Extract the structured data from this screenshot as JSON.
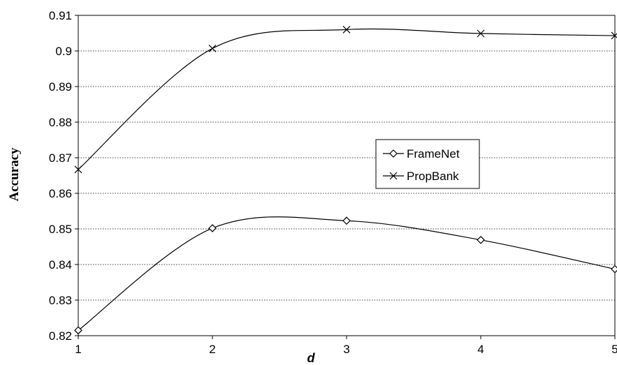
{
  "chart_data": {
    "type": "line",
    "title": "",
    "xlabel": "d",
    "ylabel": "Accuracy",
    "x": [
      1,
      2,
      3,
      4,
      5
    ],
    "x_ticks": [
      "1",
      "2",
      "3",
      "4",
      "5"
    ],
    "ylim": [
      0.82,
      0.91
    ],
    "y_ticks": [
      "0.82",
      "0.83",
      "0.84",
      "0.85",
      "0.86",
      "0.87",
      "0.88",
      "0.89",
      "0.9",
      "0.91"
    ],
    "grid": "horizontal dotted",
    "legend_position": "center-right",
    "series": [
      {
        "name": "FrameNet",
        "marker": "diamond",
        "values": [
          0.8215,
          0.8502,
          0.8523,
          0.8469,
          0.8387
        ]
      },
      {
        "name": "PropBank",
        "marker": "x",
        "values": [
          0.8667,
          0.9007,
          0.906,
          0.9049,
          0.9043
        ]
      }
    ],
    "colors": {
      "line": "#000000",
      "grid": "#000000",
      "background": "#ffffff"
    }
  }
}
